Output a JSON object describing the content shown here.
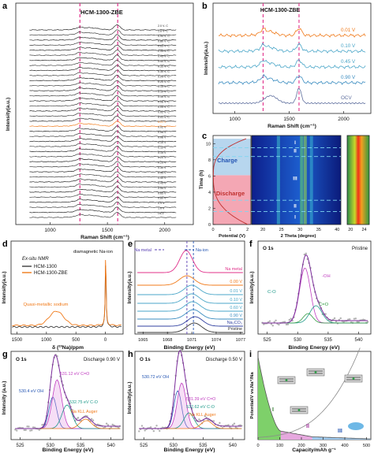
{
  "chart_data": [
    {
      "panel": "a",
      "type": "line",
      "title": "HCM-1300-ZBE",
      "xlabel": "Raman Shift (cm⁻¹)",
      "ylabel": "Intensity(a.u.)",
      "x_ticks": [
        "1000",
        "1500",
        "2000"
      ],
      "xlim": [
        700,
        2250
      ],
      "markers": [
        1260,
        1590
      ],
      "marker_color": "#e0308a",
      "trace_labels": [
        "2.0 V- C",
        "1.8 V- C",
        "0.90 V- C",
        "0.80 V- C",
        "0.65 V- C",
        "0.55 V- C",
        "0.45 V- C",
        "0.40 V- C",
        "0.35 V- C",
        "0.30 V- C",
        "0.25 V- C",
        "0.20 V- C",
        "0.15 V- C",
        "0.12 V- C",
        "0.10 V- C",
        "0.08 V- C",
        "0.05 V- C",
        "0.02 V- C",
        "0.01 V- C",
        "0.01 V",
        "0.02 V",
        "0.05 V",
        "0.08 V",
        "0.10 V",
        "0.12 V",
        "0.15 V",
        "0.20 V",
        "0.25 V",
        "0.30 V",
        "0.35 V",
        "0.40 V",
        "0.45 V",
        "0.55 V",
        "0.65 V",
        "0.80 V",
        "0.9 V",
        "1.0 V",
        "OCV"
      ],
      "highlight": {
        "label": "0.01 V",
        "color": "#f07a1a"
      }
    },
    {
      "panel": "b",
      "type": "line",
      "title": "HCM-1300-ZBE",
      "xlabel": "Raman Shift (cm⁻¹)",
      "ylabel": "Intensity(a.u.)",
      "x_ticks": [
        "1000",
        "1500",
        "2000"
      ],
      "xlim": [
        800,
        2250
      ],
      "markers": [
        1260,
        1590
      ],
      "series": [
        {
          "name": "0.01 V",
          "color": "#f07a1a"
        },
        {
          "name": "0.10 V",
          "color": "#4aa6c8"
        },
        {
          "name": "0.45 V",
          "color": "#4aa6c8"
        },
        {
          "name": "0.90 V",
          "color": "#3a8cc0"
        },
        {
          "name": "OCV",
          "color": "#5f6f9e"
        }
      ]
    },
    {
      "panel": "c",
      "type": "heatmap",
      "ylabel": "Time (h)",
      "y_ticks": [
        "0",
        "2",
        "4",
        "6",
        "8",
        "10"
      ],
      "ylim": [
        0,
        11
      ],
      "voltage_xlabel": "Potential (V)",
      "voltage_ticks": [
        "0",
        "1",
        "2"
      ],
      "theta_xlabel": "2 Theta (degree)",
      "theta_ticks": [
        "20",
        "25",
        "30",
        "35",
        "40"
      ],
      "zoom_ticks": [
        "20",
        "24"
      ],
      "regions": [
        {
          "label": "Charge",
          "from": 6.1,
          "to": 10.6
        },
        {
          "label": "Discharge",
          "from": 0,
          "to": 6.1
        }
      ],
      "stage_labels": [
        {
          "label": "I",
          "t": 10.2
        },
        {
          "label": "II",
          "t": 9.2
        },
        {
          "label": "III",
          "t": 5.8
        },
        {
          "label": "II",
          "t": 2.4
        },
        {
          "label": "I",
          "t": 1.0
        }
      ]
    },
    {
      "panel": "d",
      "type": "line",
      "title": "Ex-situ NMR",
      "xlabel": "δ (²³Na)/ppm",
      "ylabel": "Intensity(a.u.)",
      "x_ticks": [
        "1500",
        "1000",
        "500",
        "0"
      ],
      "xlim": [
        1600,
        -300
      ],
      "series": [
        {
          "name": "HCM-1300",
          "color": "#3d3d3d"
        },
        {
          "name": "HCM-1300-ZBE",
          "color": "#f07a1a"
        }
      ],
      "annotations": [
        "diamagnetic Na-ion",
        "Quasi-metallic sodium"
      ]
    },
    {
      "panel": "e",
      "type": "line",
      "xlabel": "Binding Energy (eV)",
      "ylabel": "Intensity(a.u.)",
      "x_ticks": [
        "1065",
        "1068",
        "1071",
        "1074",
        "1077"
      ],
      "xlim": [
        1064,
        1077.5
      ],
      "legend": [
        {
          "name": "Na metal",
          "color": "#5a3fb3"
        },
        {
          "name": "Na-ion",
          "color": "#2455b3"
        }
      ],
      "trace_labels": [
        {
          "name": "Na metal",
          "color": "#e0308a"
        },
        {
          "name": "0.00 V",
          "color": "#f07a1a"
        },
        {
          "name": "0.01 V",
          "color": "#4aa6c8"
        },
        {
          "name": "0.10 V",
          "color": "#4aa6c8"
        },
        {
          "name": "0.60 V",
          "color": "#4aa6c8"
        },
        {
          "name": "0.90 V",
          "color": "#3a8cc0"
        },
        {
          "name": "Na₂CO₃",
          "color": "#3040a0"
        },
        {
          "name": "Pristine",
          "color": "#333333"
        }
      ]
    },
    {
      "panel": "f",
      "type": "scatter",
      "title": "O 1s",
      "condition": "Pristine",
      "xlabel": "Binding Energy (eV)",
      "ylabel": "Intensity(a.u.)",
      "x_ticks": [
        "525",
        "530",
        "535",
        "540"
      ],
      "xlim": [
        523.5,
        542
      ],
      "components": [
        {
          "name": "-OH",
          "center": 531.2,
          "color": "#c03ec0"
        },
        {
          "name": "C-O",
          "center": 533.0,
          "color": "#1f9a8a"
        },
        {
          "name": "C=O",
          "center": 531.7,
          "color": "#2f9a40"
        }
      ]
    },
    {
      "panel": "g",
      "type": "scatter",
      "title": "O 1s",
      "condition": "Discharge 0.90 V",
      "xlabel": "Binding Energy (eV)",
      "ylabel": "Intensity (a.u.)",
      "x_ticks": [
        "525",
        "530",
        "535",
        "540"
      ],
      "xlim": [
        523.5,
        542
      ],
      "annotations": [
        {
          "text": "531.12 eV C=O",
          "color": "#c03ec0"
        },
        {
          "text": "530.4 eV OH",
          "color": "#2455b3"
        },
        {
          "text": "532.75 eV C-O",
          "color": "#1f9a8a"
        },
        {
          "text": "Na KLL Auger",
          "color": "#f07a1a"
        }
      ]
    },
    {
      "panel": "h",
      "type": "scatter",
      "title": "O 1s",
      "condition": "Discharge 0.50 V",
      "xlabel": "Binding Energy (eV)",
      "ylabel": "Intensity(a.u.)",
      "x_ticks": [
        "525",
        "530",
        "535",
        "540"
      ],
      "xlim": [
        523.5,
        542
      ],
      "annotations": [
        {
          "text": "530.72 eV OH",
          "color": "#2455b3"
        },
        {
          "text": "531.39 eV C=O",
          "color": "#c03ec0"
        },
        {
          "text": "532.62 eV C-O",
          "color": "#1f9a8a"
        },
        {
          "text": "Na KLL Auger",
          "color": "#f07a1a"
        }
      ]
    },
    {
      "panel": "i",
      "type": "area",
      "xlabel": "Capacity/mAh g⁻¹",
      "ylabel": "Potential/V vs.Na⁺/Na",
      "x_ticks": [
        "0",
        "100",
        "200",
        "300",
        "400",
        "500"
      ],
      "xlim": [
        0,
        520
      ],
      "regions": [
        {
          "label": "I",
          "color": "#7ed06a"
        },
        {
          "label": "II",
          "color": "#e6a8de"
        },
        {
          "label": "III",
          "color": "#9ec9ee"
        }
      ]
    }
  ],
  "panel_letters": [
    "a",
    "b",
    "c",
    "d",
    "e",
    "f",
    "g",
    "h",
    "i"
  ]
}
